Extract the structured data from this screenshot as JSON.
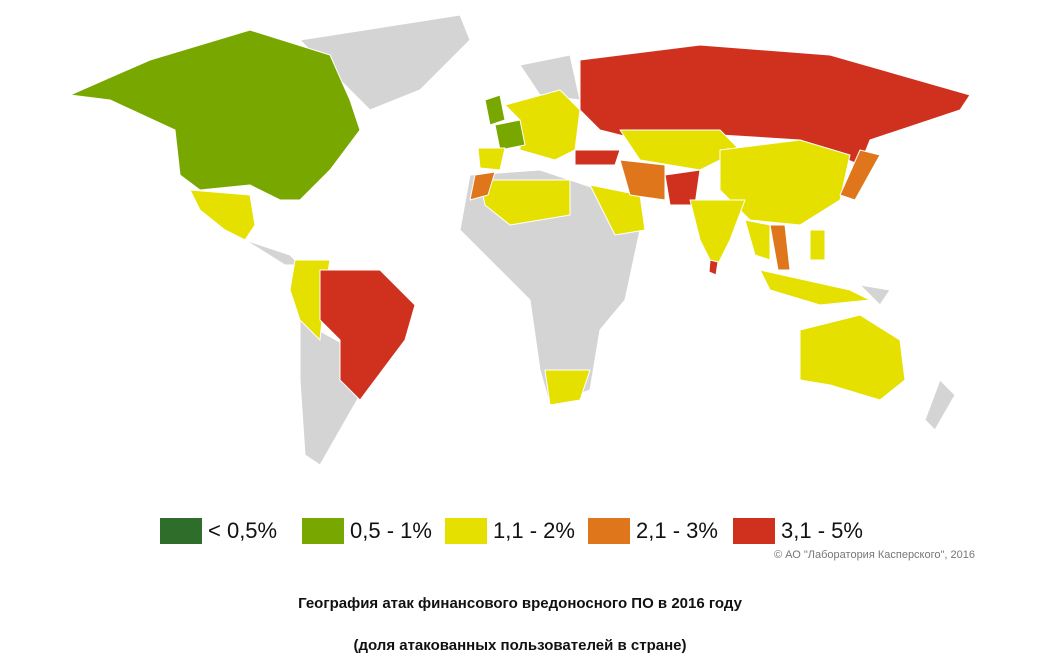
{
  "legend": {
    "items": [
      {
        "label": "< 0,5%",
        "color": "#2f6d2b"
      },
      {
        "label": "0,5 - 1%",
        "color": "#78a800"
      },
      {
        "label": "1,1 - 2%",
        "color": "#e6e000"
      },
      {
        "label": "2,1 - 3%",
        "color": "#e0761c"
      },
      {
        "label": "3,1 - 5%",
        "color": "#d0311f"
      }
    ]
  },
  "copyright": "© АО \"Лаборатория Касперского\", 2016",
  "caption": {
    "title": "География атак финансового вредоносного ПО в 2016 году",
    "subtitle": "(доля атакованных пользователей в стране)"
  }
}
